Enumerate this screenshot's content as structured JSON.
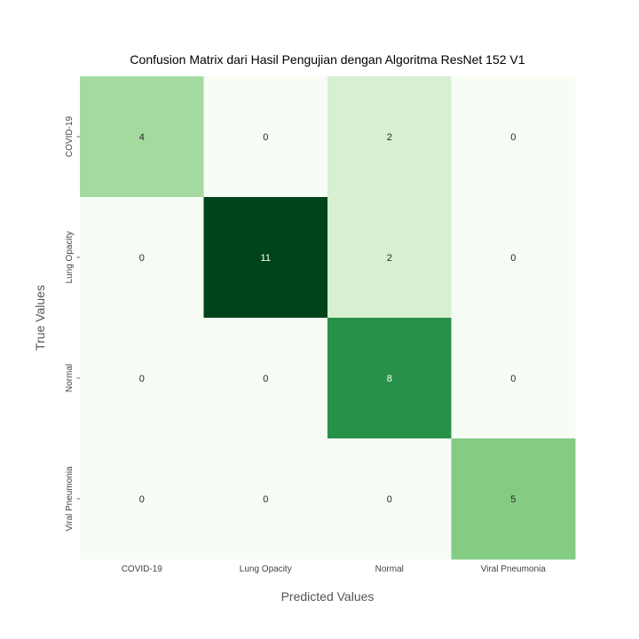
{
  "chart_data": {
    "type": "heatmap",
    "title": "Confusion Matrix dari Hasil Pengujian dengan Algoritma ResNet 152 V1",
    "xlabel": "Predicted Values",
    "ylabel": "True Values",
    "x_categories": [
      "COVID-19",
      "Lung Opacity",
      "Normal",
      "Viral Pneumonia"
    ],
    "y_categories": [
      "COVID-19",
      "Lung Opacity",
      "Normal",
      "Viral Pneumonia"
    ],
    "values": [
      [
        4,
        0,
        2,
        0
      ],
      [
        0,
        11,
        2,
        0
      ],
      [
        0,
        0,
        8,
        0
      ],
      [
        0,
        0,
        0,
        5
      ]
    ],
    "colormap": "Greens",
    "colorbar": false,
    "grid": false
  }
}
